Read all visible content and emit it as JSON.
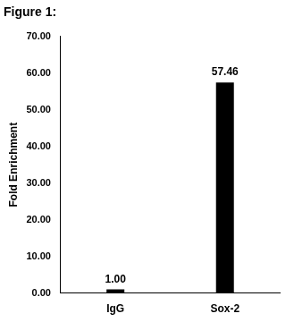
{
  "chart_data": {
    "type": "bar",
    "title": "Figure 1:",
    "y_label": "Fold Enrichment",
    "categories": [
      "IgG",
      "Sox-2"
    ],
    "values": [
      1,
      57.46
    ],
    "value_labels": [
      "1.00",
      "57.46"
    ],
    "color": "#000000",
    "ylim": [
      0,
      70
    ],
    "yticks": [
      {
        "value": 0,
        "label": "0.00"
      },
      {
        "value": 10,
        "label": "10.00"
      },
      {
        "value": 20,
        "label": "20.00"
      },
      {
        "value": 30,
        "label": "30.00"
      },
      {
        "value": 40,
        "label": "40.00"
      },
      {
        "value": 50,
        "label": "50.00"
      },
      {
        "value": 60,
        "label": "60.00"
      },
      {
        "value": 70,
        "label": "70.00"
      }
    ],
    "grid": false,
    "data_labels": true
  }
}
